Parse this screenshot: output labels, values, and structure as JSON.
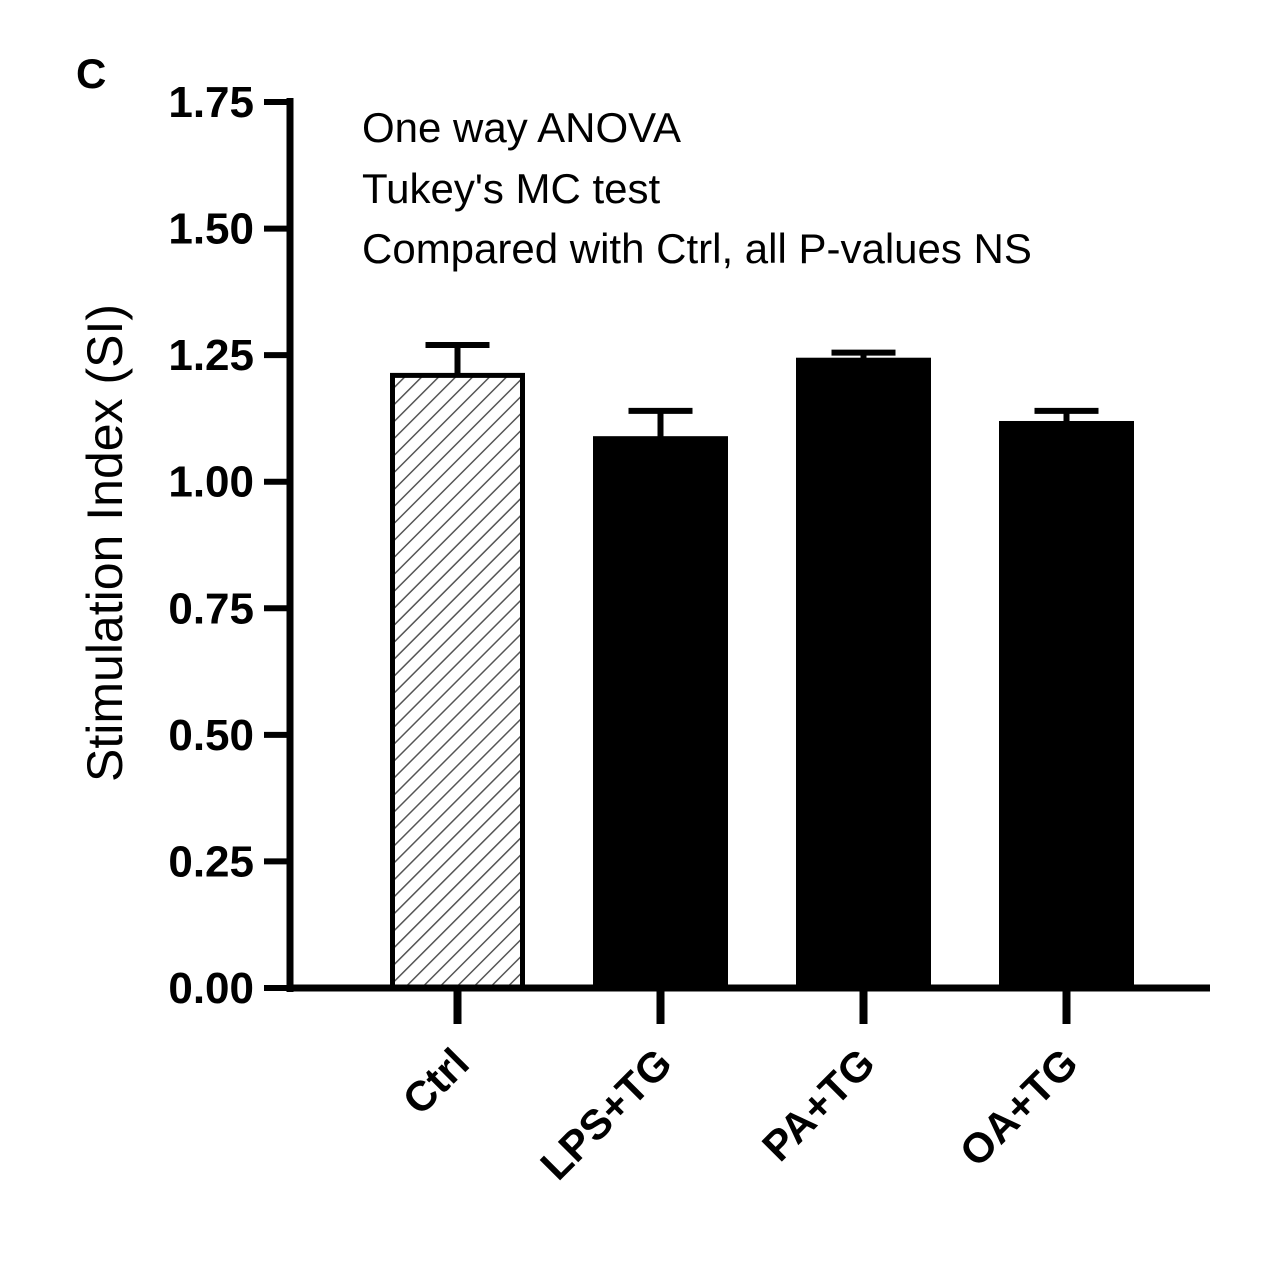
{
  "panel_label": "C",
  "annotations": [
    "One way ANOVA",
    "Tukey's MC test",
    "Compared with Ctrl, all P-values NS"
  ],
  "chart_data": {
    "type": "bar",
    "categories": [
      "Ctrl",
      "LPS+TG",
      "PA+TG",
      "OA+TG"
    ],
    "values": [
      1.21,
      1.085,
      1.24,
      1.115
    ],
    "error_upper": [
      1.27,
      1.14,
      1.255,
      1.14
    ],
    "bar_styles": [
      "hatched",
      "solid",
      "solid",
      "solid"
    ],
    "ylabel": "Stimulation Index (SI)",
    "xlabel": "",
    "ylim": [
      0,
      1.75
    ],
    "yticks": [
      0.0,
      0.25,
      0.5,
      0.75,
      1.0,
      1.25,
      1.5,
      1.75
    ],
    "ytick_labels": [
      "0.00",
      "0.25",
      "0.50",
      "0.75",
      "1.00",
      "1.25",
      "1.50",
      "1.75"
    ],
    "grid": false,
    "colors": {
      "bar": "#000000",
      "hatch": "#555555",
      "axis": "#000000"
    }
  }
}
